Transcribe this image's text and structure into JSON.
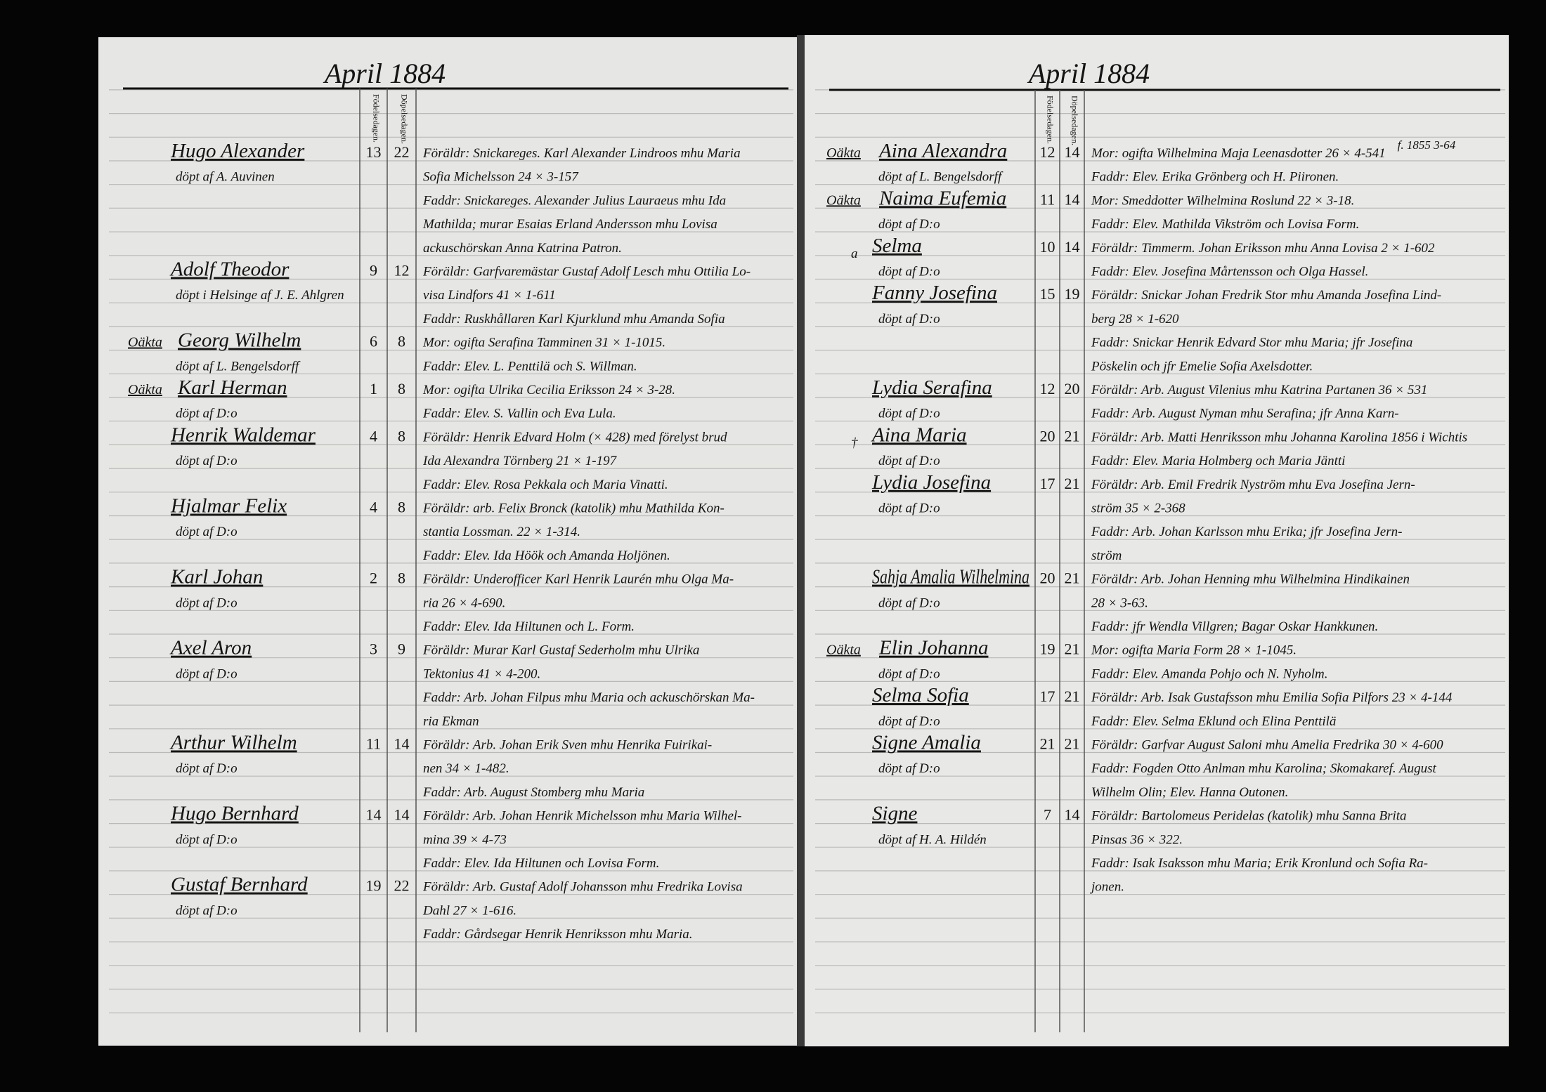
{
  "left_page": {
    "header": "April 1884",
    "column_headers": [
      "Födelsedagen.",
      "Döpelsedagen."
    ],
    "entries": [
      {
        "name": "Hugo Alexander",
        "baptized_by": "döpt af A. Auvinen",
        "birth_day": 13,
        "baptism_day": 22,
        "notes": [
          "Föräldr: Snickareges. Karl Alexander Lindroos mhu Maria",
          "Sofia Michelsson 24 × 3-157",
          "Faddr: Snickareges. Alexander Julius Lauraeus mhu Ida",
          "Mathilda; murar Esaias Erland Andersson mhu Lovisa",
          "ackuschörskan Anna Katrina Patron."
        ]
      },
      {
        "name": "Adolf Theodor",
        "baptized_by": "döpt i Helsinge af J. E. Ahlgren",
        "birth_day": 9,
        "baptism_day": 12,
        "notes": [
          "Föräldr: Garfvaremästar Gustaf Adolf Lesch mhu Ottilia Lo-",
          "visa Lindfors 41 × 1-611",
          "Faddr: Ruskhållaren Karl Kjurklund mhu Amanda Sofia"
        ]
      },
      {
        "mark": "Oäkta",
        "name": "Georg Wilhelm",
        "baptized_by": "döpt af L. Bengelsdorff",
        "birth_day": 6,
        "baptism_day": 8,
        "notes": [
          "Mor: ogifta Serafina Tamminen 31 × 1-1015.",
          "Faddr: Elev. L. Penttilä och S. Willman."
        ]
      },
      {
        "mark": "Oäkta",
        "name": "Karl Herman",
        "baptized_by": "döpt af D:o",
        "birth_day": 1,
        "baptism_day": 8,
        "notes": [
          "Mor: ogifta Ulrika Cecilia Eriksson 24 × 3-28.",
          "Faddr: Elev. S. Vallin och Eva Lula."
        ]
      },
      {
        "name": "Henrik Waldemar",
        "baptized_by": "döpt af D:o",
        "birth_day": 4,
        "baptism_day": 8,
        "notes": [
          "Föräldr: Henrik Edvard Holm (× 428) med förelyst brud",
          "Ida Alexandra Törnberg 21 × 1-197",
          "Faddr: Elev. Rosa Pekkala och Maria Vinatti."
        ]
      },
      {
        "name": "Hjalmar Felix",
        "baptized_by": "döpt af D:o",
        "birth_day": 4,
        "baptism_day": 8,
        "notes": [
          "Föräldr: arb. Felix Bronck (katolik) mhu Mathilda Kon-",
          "stantia Lossman. 22 × 1-314.",
          "Faddr: Elev. Ida Höök och Amanda Holjönen."
        ]
      },
      {
        "name": "Karl Johan",
        "baptized_by": "döpt af D:o",
        "birth_day": 2,
        "baptism_day": 8,
        "notes": [
          "Föräldr: Underofficer Karl Henrik Laurén mhu Olga Ma-",
          "ria 26 × 4-690.",
          "Faddr: Elev. Ida Hiltunen och L. Form."
        ]
      },
      {
        "name": "Axel Aron",
        "baptized_by": "döpt af D:o",
        "birth_day": 3,
        "baptism_day": 9,
        "notes": [
          "Föräldr: Murar Karl Gustaf Sederholm mhu Ulrika",
          "Tektonius 41 × 4-200.",
          "Faddr: Arb. Johan Filpus mhu Maria och ackuschörskan Ma-",
          "ria Ekman"
        ]
      },
      {
        "name": "Arthur Wilhelm",
        "baptized_by": "döpt af D:o",
        "birth_day": 11,
        "baptism_day": 14,
        "notes": [
          "Föräldr: Arb. Johan Erik Sven mhu Henrika Fuirikai-",
          "nen 34 × 1-482.",
          "Faddr: Arb. August Stomberg mhu Maria"
        ]
      },
      {
        "name": "Hugo Bernhard",
        "baptized_by": "döpt af D:o",
        "birth_day": 14,
        "baptism_day": 14,
        "notes": [
          "Föräldr: Arb. Johan Henrik Michelsson mhu Maria Wilhel-",
          "mina 39 × 4-73",
          "Faddr: Elev. Ida Hiltunen och Lovisa Form."
        ]
      },
      {
        "name": "Gustaf Bernhard",
        "baptized_by": "döpt af D:o",
        "birth_day": 19,
        "baptism_day": 22,
        "notes": [
          "Föräldr: Arb. Gustaf Adolf Johansson mhu Fredrika Lovisa",
          "Dahl 27 × 1-616.",
          "Faddr: Gårdsegar Henrik Henriksson mhu Maria."
        ]
      }
    ]
  },
  "right_page": {
    "header": "April 1884",
    "column_headers": [
      "Födelsedagen.",
      "Döpelsedagen."
    ],
    "margin_note": "f. 1855 3-64",
    "entries": [
      {
        "mark": "Oäkta",
        "name": "Aina Alexandra",
        "baptized_by": "döpt af L. Bengelsdorff",
        "birth_day": 12,
        "baptism_day": 14,
        "notes": [
          "Mor: ogifta Wilhelmina Maja Leenasdotter 26 × 4-541",
          "Faddr: Elev. Erika Grönberg och H. Piironen."
        ]
      },
      {
        "mark": "Oäkta",
        "name": "Naima Eufemia",
        "baptized_by": "döpt af D:o",
        "birth_day": 11,
        "baptism_day": 14,
        "notes": [
          "Mor: Smeddotter Wilhelmina Roslund 22 × 3-18.",
          "Faddr: Elev. Mathilda Vikström och Lovisa Form."
        ]
      },
      {
        "mark": "a",
        "name": "Selma",
        "baptized_by": "döpt af D:o",
        "birth_day": 10,
        "baptism_day": 14,
        "notes": [
          "Föräldr: Timmerm. Johan Eriksson mhu Anna Lovisa 2 × 1-602",
          "Faddr: Elev. Josefina Mårtensson och Olga Hassel."
        ]
      },
      {
        "name": "Fanny Josefina",
        "baptized_by": "döpt af D:o",
        "birth_day": 15,
        "baptism_day": 19,
        "notes": [
          "Föräldr: Snickar Johan Fredrik Stor mhu Amanda Josefina Lind-",
          "berg 28 × 1-620",
          "Faddr: Snickar Henrik Edvard Stor mhu Maria; jfr Josefina",
          "Pöskelin och jfr Emelie Sofia Axelsdotter."
        ]
      },
      {
        "name": "Lydia Serafina",
        "baptized_by": "döpt af D:o",
        "birth_day": 12,
        "baptism_day": 20,
        "notes": [
          "Föräldr: Arb. August Vilenius mhu Katrina Partanen 36 × 531",
          "Faddr: Arb. August Nyman mhu Serafina; jfr Anna Karn-"
        ]
      },
      {
        "mark": "†",
        "name": "Aina Maria",
        "baptized_by": "döpt af D:o",
        "birth_day": 20,
        "baptism_day": 21,
        "notes": [
          "Föräldr: Arb. Matti Henriksson mhu Johanna Karolina 1856 i Wichtis",
          "Faddr: Elev. Maria Holmberg och Maria Jäntti"
        ]
      },
      {
        "name": "Lydia Josefina",
        "baptized_by": "döpt af D:o",
        "birth_day": 17,
        "baptism_day": 21,
        "notes": [
          "Föräldr: Arb. Emil Fredrik Nyström mhu Eva Josefina Jern-",
          "ström 35 × 2-368",
          "Faddr: Arb. Johan Karlsson mhu Erika; jfr Josefina Jern-",
          "ström"
        ]
      },
      {
        "name": "Sahja Amalia Wilhelmina",
        "baptized_by": "döpt af D:o",
        "birth_day": 20,
        "baptism_day": 21,
        "notes": [
          "Föräldr: Arb. Johan Henning mhu Wilhelmina Hindikainen",
          "28 × 3-63.",
          "Faddr: jfr Wendla Villgren; Bagar Oskar Hankkunen."
        ]
      },
      {
        "mark": "Oäkta",
        "name": "Elin Johanna",
        "baptized_by": "döpt af D:o",
        "birth_day": 19,
        "baptism_day": 21,
        "notes": [
          "Mor: ogifta Maria Form 28 × 1-1045.",
          "Faddr: Elev. Amanda Pohjo och N. Nyholm."
        ]
      },
      {
        "name": "Selma Sofia",
        "baptized_by": "döpt af D:o",
        "birth_day": 17,
        "baptism_day": 21,
        "notes": [
          "Föräldr: Arb. Isak Gustafsson mhu Emilia Sofia Pilfors 23 × 4-144",
          "Faddr: Elev. Selma Eklund och Elina Penttilä"
        ]
      },
      {
        "name": "Signe Amalia",
        "baptized_by": "döpt af D:o",
        "birth_day": 21,
        "baptism_day": 21,
        "notes": [
          "Föräldr: Garfvar August Saloni mhu Amelia Fredrika 30 × 4-600",
          "Faddr: Fogden Otto Anlman mhu Karolina; Skomakaref. August",
          "Wilhelm Olin; Elev. Hanna Outonen."
        ]
      },
      {
        "name": "Signe",
        "baptized_by": "döpt af H. A. Hildén",
        "birth_day": 7,
        "baptism_day": 14,
        "notes": [
          "Föräldr: Bartolomeus Peridelas (katolik) mhu Sanna Brita",
          "Pinsas 36 × 322.",
          "Faddr: Isak Isaksson mhu Maria; Erik Kronlund och Sofia Ra-",
          "jonen."
        ]
      }
    ]
  }
}
